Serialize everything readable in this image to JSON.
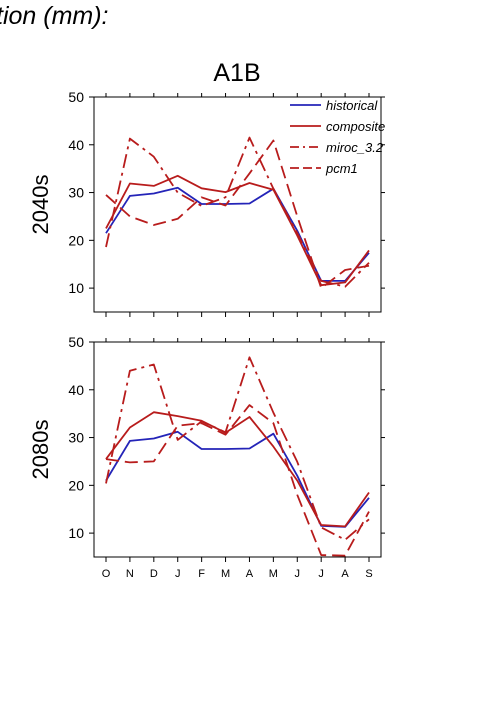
{
  "page": {
    "title_fragment": "tion (mm):",
    "scenario": "A1B"
  },
  "colors": {
    "historical": "#2424b8",
    "composite": "#b81c1c",
    "miroc_3.2": "#b81c1c",
    "pcm1": "#b81c1c"
  },
  "chart_data": [
    {
      "type": "line",
      "panel_label": "2040s",
      "title": "A1B",
      "categories": [
        "O",
        "N",
        "D",
        "J",
        "F",
        "M",
        "A",
        "M",
        "J",
        "J",
        "A",
        "S"
      ],
      "ylim": [
        5,
        50
      ],
      "yticks": [
        10,
        20,
        30,
        40,
        50
      ],
      "grid": false,
      "legend": "top-right",
      "series": [
        {
          "name": "historical",
          "style": "solid",
          "values": [
            21.5,
            29.3,
            29.8,
            31.0,
            27.6,
            27.6,
            27.7,
            30.8,
            22.0,
            11.5,
            11.5,
            17.4
          ]
        },
        {
          "name": "composite",
          "style": "solid",
          "values": [
            22.5,
            31.9,
            31.4,
            33.5,
            30.9,
            30.1,
            32.0,
            30.6,
            21.0,
            10.6,
            11.2,
            17.9
          ]
        },
        {
          "name": "miroc_3.2",
          "style": "dashdot",
          "values": [
            18.6,
            41.3,
            37.5,
            30.0,
            27.2,
            29.0,
            41.5,
            30.8,
            21.5,
            11.5,
            10.3,
            15.3
          ]
        },
        {
          "name": "pcm1",
          "style": "dashed",
          "values": [
            29.5,
            25.0,
            23.2,
            24.5,
            29.0,
            27.3,
            34.0,
            40.9,
            25.0,
            10.0,
            13.8,
            14.7
          ]
        }
      ]
    },
    {
      "type": "line",
      "panel_label": "2080s",
      "title": "",
      "categories": [
        "O",
        "N",
        "D",
        "J",
        "F",
        "M",
        "A",
        "M",
        "J",
        "J",
        "A",
        "S"
      ],
      "ylim": [
        5,
        50
      ],
      "yticks": [
        10,
        20,
        30,
        40,
        50
      ],
      "grid": false,
      "legend": "",
      "series": [
        {
          "name": "historical",
          "style": "solid",
          "values": [
            21.0,
            29.3,
            29.8,
            31.2,
            27.6,
            27.6,
            27.7,
            30.8,
            22.0,
            11.5,
            11.3,
            17.4
          ]
        },
        {
          "name": "composite",
          "style": "solid",
          "values": [
            25.5,
            32.1,
            35.3,
            34.5,
            33.5,
            31.0,
            34.3,
            28.1,
            21.0,
            11.7,
            11.4,
            18.5
          ]
        },
        {
          "name": "miroc_3.2",
          "style": "dashdot",
          "values": [
            20.4,
            44.0,
            45.3,
            29.5,
            33.4,
            31.1,
            46.8,
            35.2,
            24.9,
            11.2,
            8.6,
            12.9
          ]
        },
        {
          "name": "pcm1",
          "style": "dashed",
          "values": [
            25.5,
            24.8,
            25.0,
            32.5,
            33.0,
            30.6,
            36.8,
            33.0,
            18.0,
            5.4,
            5.3,
            14.5
          ]
        }
      ]
    }
  ]
}
